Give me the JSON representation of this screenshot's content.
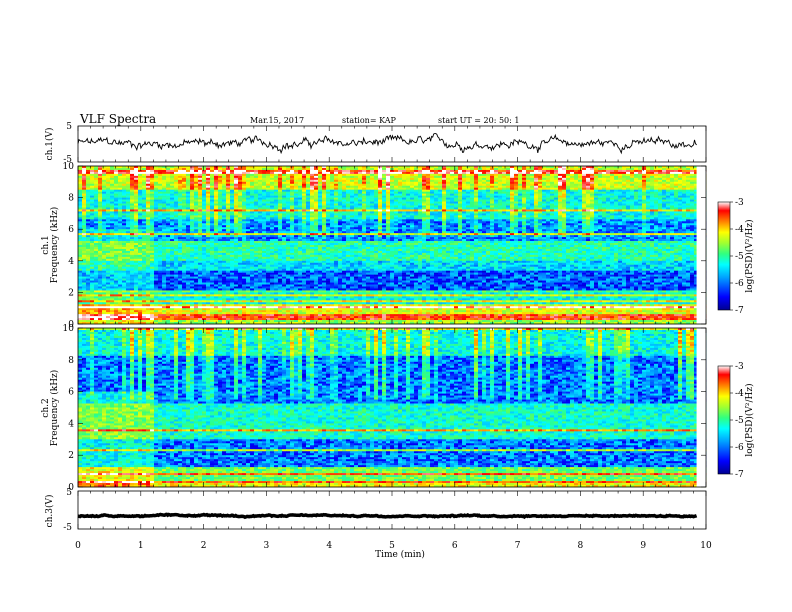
{
  "header": {
    "title": "VLF Spectra",
    "date": "Mar.15, 2017",
    "station": "station= KAP",
    "start": "start  UT =   20: 50: 1"
  },
  "chart_data": [
    {
      "type": "line",
      "id": "ch1-waveform",
      "ylabel": "ch.1(V)",
      "xlim": [
        0,
        10
      ],
      "ylim": [
        -5,
        5
      ],
      "yticks": [
        "5",
        "-5"
      ],
      "x_extent_min": [
        0,
        9.85
      ],
      "mean_v": 0.2,
      "noise_amplitude_v": 1.5
    },
    {
      "type": "heatmap",
      "id": "ch1-spectrogram",
      "ylabel": "Frequency (kHz)",
      "ylabel_prefix": "ch.1",
      "ylim_khz": [
        0,
        10
      ],
      "yticks": [
        "0",
        "2",
        "4",
        "6",
        "8",
        "10"
      ],
      "colorbar": {
        "label": "log(PSD)(V²/Hz)",
        "range": [
          -7,
          -3
        ],
        "ticks": [
          "-3",
          "-4",
          "-5",
          "-6",
          "-7"
        ],
        "colors": [
          "#000090",
          "#0000ff",
          "#00a0ff",
          "#00ffff",
          "#30ff80",
          "#a0ff30",
          "#ffff00",
          "#ff8000",
          "#ff0000",
          "#ffffff"
        ]
      },
      "bands_khz": [
        {
          "from": 0.0,
          "to": 0.2,
          "level": -4.8
        },
        {
          "from": 0.2,
          "to": 0.6,
          "level": -3.6
        },
        {
          "from": 0.6,
          "to": 1.2,
          "level": -4.5
        },
        {
          "from": 1.2,
          "to": 2.0,
          "level": -5.6
        },
        {
          "from": 2.0,
          "to": 3.4,
          "level": -6.3
        },
        {
          "from": 3.4,
          "to": 4.0,
          "level": -5.8
        },
        {
          "from": 4.0,
          "to": 5.2,
          "level": -5.4
        },
        {
          "from": 5.2,
          "to": 6.6,
          "level": -6.1
        },
        {
          "from": 6.6,
          "to": 8.5,
          "level": -5.6
        },
        {
          "from": 8.5,
          "to": 10.0,
          "level": -4.6
        }
      ],
      "early_segment_min": [
        0,
        1.2
      ],
      "early_segment_offset": 0.9
    },
    {
      "type": "heatmap",
      "id": "ch2-spectrogram",
      "ylabel": "Frequency (kHz)",
      "ylabel_prefix": "ch.2",
      "ylim_khz": [
        0,
        10
      ],
      "yticks": [
        "0",
        "2",
        "4",
        "6",
        "8",
        "10"
      ],
      "colorbar": {
        "label": "log(PSD)(V²/Hz)",
        "range": [
          -7,
          -3
        ],
        "ticks": [
          "-3",
          "-4",
          "-5",
          "-6",
          "-7"
        ],
        "colors": [
          "#000090",
          "#0000ff",
          "#00a0ff",
          "#00ffff",
          "#30ff80",
          "#a0ff30",
          "#ffff00",
          "#ff8000",
          "#ff0000",
          "#ffffff"
        ]
      },
      "bands_khz": [
        {
          "from": 0.0,
          "to": 0.3,
          "level": -4.4
        },
        {
          "from": 0.3,
          "to": 1.2,
          "level": -5.0
        },
        {
          "from": 1.2,
          "to": 3.0,
          "level": -6.2
        },
        {
          "from": 3.0,
          "to": 4.0,
          "level": -5.5
        },
        {
          "from": 4.0,
          "to": 5.2,
          "level": -5.5
        },
        {
          "from": 5.2,
          "to": 6.2,
          "level": -6.2
        },
        {
          "from": 6.2,
          "to": 8.3,
          "level": -6.2
        },
        {
          "from": 8.3,
          "to": 10.0,
          "level": -5.6
        }
      ],
      "early_segment_min": [
        0,
        1.2
      ],
      "early_segment_offset": 1.2
    },
    {
      "type": "line",
      "id": "ch3-waveform",
      "ylabel": "ch.3(V)",
      "xlim": [
        0,
        10
      ],
      "ylim": [
        -5,
        5
      ],
      "yticks": [
        "5",
        "-5"
      ],
      "x_extent_min": [
        0,
        9.85
      ],
      "mean_v": -1.5,
      "noise_amplitude_v": 0.2
    }
  ],
  "x_axis": {
    "label": "Time (min)",
    "ticks": [
      "0",
      "1",
      "2",
      "3",
      "4",
      "5",
      "6",
      "7",
      "8",
      "9",
      "10"
    ]
  }
}
